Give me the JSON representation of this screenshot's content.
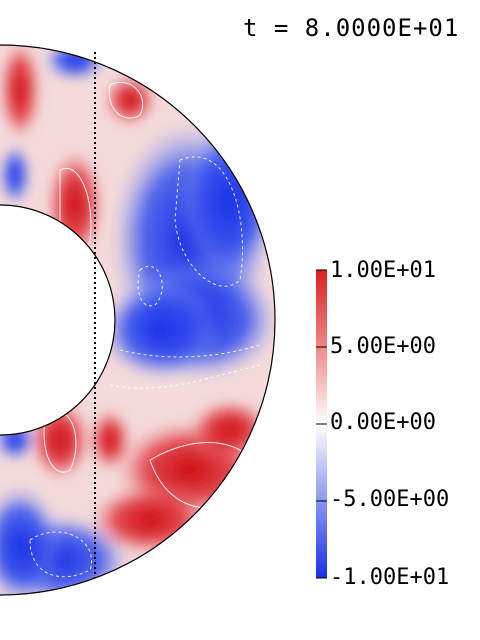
{
  "time_label": "t = 8.0000E+01",
  "colorbar": {
    "ticks": [
      "1.00E+01",
      "5.00E+00",
      "0.00E+00",
      "-5.00E+00",
      "-1.00E+01"
    ],
    "max_color": "#d82020",
    "mid_color": "#ffffff",
    "min_color": "#1a2fe6"
  },
  "field": {
    "colormap": "blue-white-red diverging",
    "vmin": -10,
    "vmax": 10
  }
}
